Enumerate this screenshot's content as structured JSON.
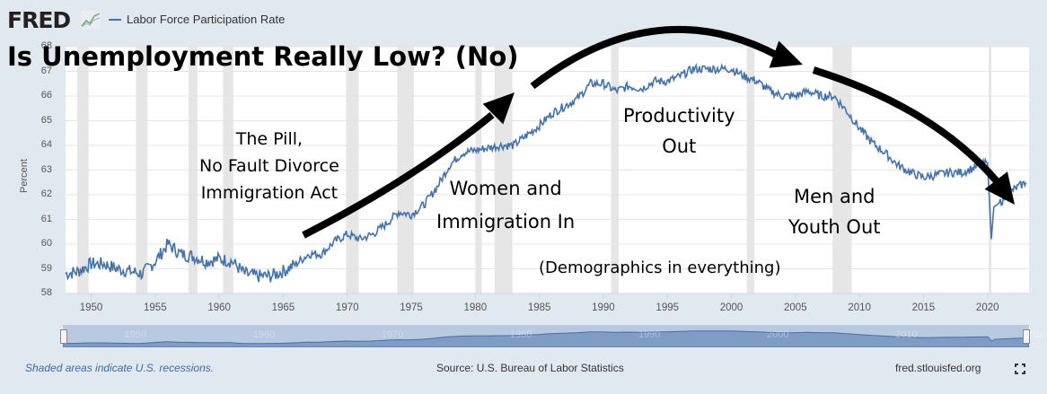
{
  "header": {
    "logo": "FRED",
    "legend_label": "Labor Force Participation Rate",
    "series_color": "#4572a7"
  },
  "annotations": {
    "title": "Is Unemployment Really Low? (No)",
    "pill_line1": "The Pill,",
    "pill_line2": "No Fault Divorce",
    "pill_line3": "Immigration Act",
    "women_line1": "Women and",
    "women_line2": "Immigration In",
    "productivity_line1": "Productivity",
    "productivity_line2": "Out",
    "men_line1": "Men and",
    "men_line2": "Youth Out",
    "demographics": "(Demographics in everything)"
  },
  "axis": {
    "ylabel": "Percent",
    "yticks": [
      "68",
      "67",
      "66",
      "65",
      "64",
      "63",
      "62",
      "61",
      "60",
      "59",
      "58"
    ],
    "xticks": [
      "1950",
      "1955",
      "1960",
      "1965",
      "1970",
      "1975",
      "1980",
      "1985",
      "1990",
      "1995",
      "2000",
      "2005",
      "2010",
      "2015",
      "2020"
    ],
    "navigator_ticks": [
      "1950",
      "1960",
      "1970",
      "1980",
      "1990",
      "2000",
      "2010",
      "2020"
    ]
  },
  "footer": {
    "recession_note": "Shaded areas indicate U.S. recessions.",
    "source": "Source: U.S. Bureau of Labor Statistics",
    "site": "fred.stlouisfed.org"
  },
  "chart_data": {
    "type": "line",
    "title": "Labor Force Participation Rate",
    "overlay_title": "Is Unemployment Really Low? (No)",
    "xlabel": "",
    "ylabel": "Percent",
    "ylim": [
      58,
      68
    ],
    "xlim": [
      1948,
      2023.2
    ],
    "grid": true,
    "legend_position": "top-left",
    "series": [
      {
        "name": "Labor Force Participation Rate",
        "x": [
          1948,
          1949,
          1950,
          1951,
          1952,
          1953,
          1954,
          1955,
          1956,
          1957,
          1958,
          1959,
          1960,
          1961,
          1962,
          1963,
          1964,
          1965,
          1966,
          1967,
          1968,
          1969,
          1970,
          1971,
          1972,
          1973,
          1974,
          1975,
          1976,
          1977,
          1978,
          1979,
          1980,
          1981,
          1982,
          1983,
          1984,
          1985,
          1986,
          1987,
          1988,
          1989,
          1990,
          1991,
          1992,
          1993,
          1994,
          1995,
          1996,
          1997,
          1998,
          1999,
          2000,
          2001,
          2002,
          2003,
          2004,
          2005,
          2006,
          2007,
          2008,
          2009,
          2010,
          2011,
          2012,
          2013,
          2014,
          2015,
          2016,
          2017,
          2018,
          2019,
          2020.0,
          2020.3,
          2020.5,
          2021,
          2022,
          2023
        ],
        "values": [
          58.8,
          58.9,
          59.2,
          59.2,
          59.0,
          58.9,
          58.8,
          59.3,
          60.0,
          59.6,
          59.5,
          59.3,
          59.4,
          59.3,
          58.8,
          58.7,
          58.7,
          58.9,
          59.2,
          59.6,
          59.6,
          60.1,
          60.4,
          60.2,
          60.4,
          60.8,
          61.3,
          61.2,
          61.6,
          62.3,
          63.2,
          63.7,
          63.8,
          63.9,
          64.0,
          64.0,
          64.4,
          64.8,
          65.3,
          65.6,
          65.9,
          66.5,
          66.5,
          66.2,
          66.4,
          66.3,
          66.6,
          66.6,
          66.8,
          67.1,
          67.1,
          67.1,
          67.1,
          66.8,
          66.6,
          66.2,
          66.0,
          66.0,
          66.2,
          66.0,
          66.0,
          65.4,
          64.7,
          64.1,
          63.7,
          63.2,
          62.9,
          62.7,
          62.8,
          62.9,
          62.9,
          63.1,
          63.3,
          60.2,
          61.5,
          61.7,
          62.2,
          62.5
        ]
      }
    ],
    "recessions": [
      [
        1948.9,
        1949.8
      ],
      [
        1953.5,
        1954.4
      ],
      [
        1957.6,
        1958.3
      ],
      [
        1960.3,
        1961.1
      ],
      [
        1969.9,
        1970.9
      ],
      [
        1973.9,
        1975.2
      ],
      [
        1980.0,
        1980.5
      ],
      [
        1981.5,
        1982.9
      ],
      [
        1990.6,
        1991.2
      ],
      [
        2001.2,
        2001.8
      ],
      [
        2007.9,
        2009.4
      ],
      [
        2020.1,
        2020.3
      ]
    ],
    "annotations": [
      "The Pill, No Fault Divorce Immigration Act",
      "Women and Immigration In",
      "Productivity Out",
      "Men and Youth Out",
      "(Demographics in everything)"
    ]
  }
}
